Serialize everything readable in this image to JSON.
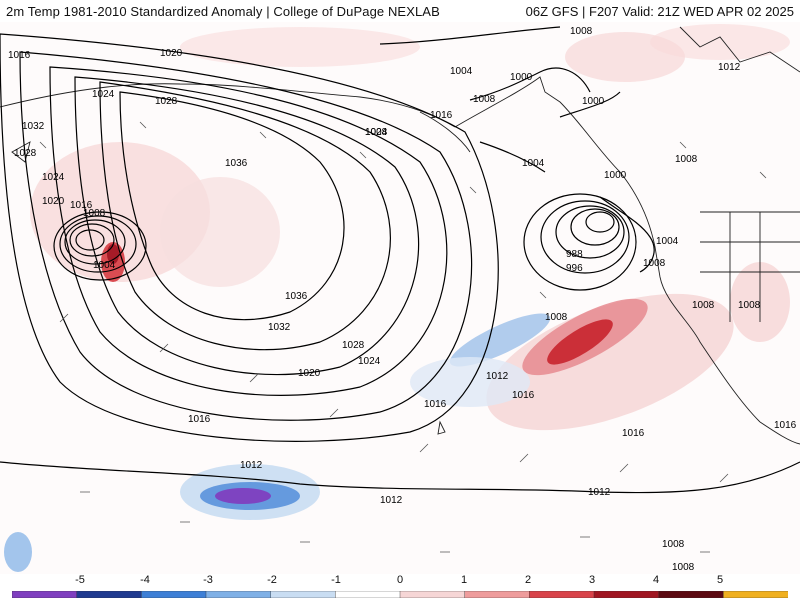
{
  "header": {
    "left": "2m Temp 1981-2010 Standardized Anomaly | College of DuPage NEXLAB",
    "right": "06Z GFS | F207 Valid: 21Z WED APR 02 2025"
  },
  "colorbar": {
    "ticks": [
      "-5",
      "-4",
      "-3",
      "-2",
      "-1",
      "0",
      "1",
      "2",
      "3",
      "4",
      "5"
    ],
    "colors": [
      "#7f3fbf",
      "#1f3a8f",
      "#3d7fd6",
      "#7fb0e6",
      "#c9ddf2",
      "#ffffff",
      "#f6d6d6",
      "#ee9c9c",
      "#d8434a",
      "#a01622",
      "#5c0a12",
      "#f0b020"
    ]
  },
  "isobars": [
    {
      "label": "1016",
      "color": "#000"
    },
    {
      "label": "1020",
      "color": "#000"
    },
    {
      "label": "1024",
      "color": "#000"
    },
    {
      "label": "1028",
      "color": "#000"
    },
    {
      "label": "1032",
      "color": "#000"
    },
    {
      "label": "1036",
      "color": "#000"
    },
    {
      "label": "1008",
      "color": "#000"
    },
    {
      "label": "1004",
      "color": "#000"
    },
    {
      "label": "1000",
      "color": "#000"
    },
    {
      "label": "1012",
      "color": "#000"
    },
    {
      "label": "996",
      "color": "#000"
    },
    {
      "label": "988",
      "color": "#000"
    }
  ],
  "map_labels": [
    "1016",
    "1020",
    "1024",
    "1028",
    "1032",
    "1028",
    "1024",
    "1020",
    "1016",
    "1008",
    "1004",
    "1036",
    "1036",
    "1032",
    "1028",
    "1024",
    "1020",
    "1016",
    "1012",
    "1016",
    "1016",
    "1012",
    "1012",
    "1012",
    "1008",
    "1008",
    "1008",
    "1000",
    "1004",
    "1008",
    "1016",
    "1024",
    "1008",
    "1004",
    "1000",
    "1000",
    "1008",
    "1012",
    "1004",
    "988",
    "996",
    "1008",
    "1008",
    "1016",
    "1016",
    "1008",
    "1008"
  ]
}
